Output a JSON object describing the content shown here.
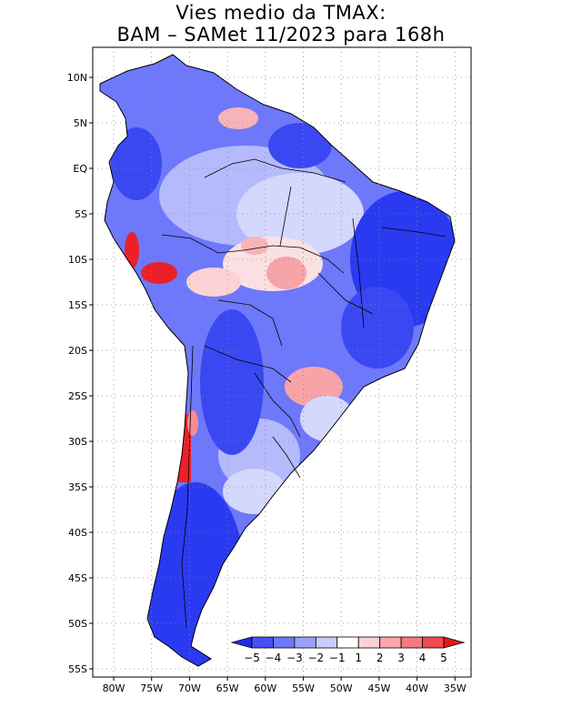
{
  "title": {
    "line1": "Vies medio da TMAX:",
    "line2": "BAM – SAMet 11/2023  para 168h"
  },
  "lat_ticks": [
    "10N",
    "5N",
    "EQ",
    "5S",
    "10S",
    "15S",
    "20S",
    "25S",
    "30S",
    "35S",
    "40S",
    "45S",
    "50S",
    "55S"
  ],
  "lon_ticks": [
    "80W",
    "75W",
    "70W",
    "65W",
    "60W",
    "55W",
    "50W",
    "45W",
    "40W",
    "35W"
  ],
  "colorbar": {
    "labels": [
      "−5",
      "−4",
      "−3",
      "−2",
      "−1",
      "1",
      "2",
      "3",
      "4",
      "5"
    ],
    "colors": [
      "#1e2cf0",
      "#4650f5",
      "#6e78fa",
      "#9aa2fb",
      "#c8cdfd",
      "#ffffff",
      "#fcd2d4",
      "#fba6aa",
      "#f7787e",
      "#f04a52",
      "#e8141c"
    ]
  },
  "map_colors": {
    "ocean": "#ffffff",
    "deep_blue": "#2a3af0",
    "mid_blue": "#5e68f6",
    "light_blue": "#a4abfb",
    "pale_blue": "#d4d8fd",
    "pale_red": "#fbc8cc",
    "light_red": "#f78c92",
    "red": "#ec2028"
  }
}
